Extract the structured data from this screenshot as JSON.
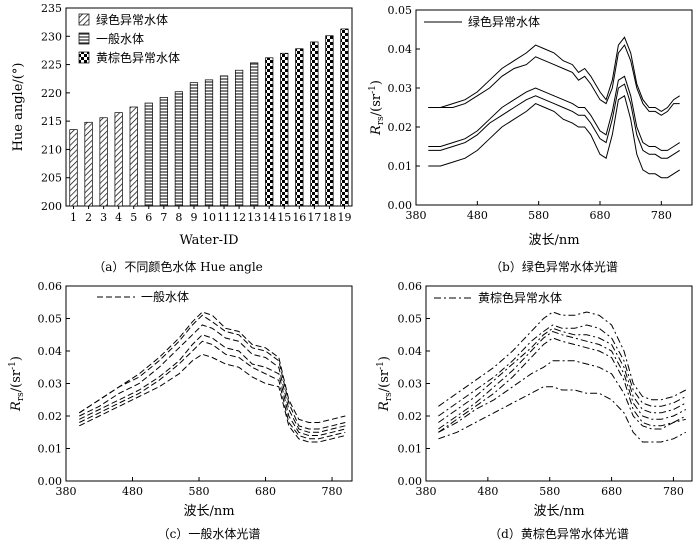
{
  "chart_data": [
    {
      "id": "a",
      "type": "bar",
      "caption": "（a）不同颜色水体 Hue angle",
      "xlabel": "Water-ID",
      "ylabel": "Hue angle/(°)",
      "ylim": [
        200,
        235
      ],
      "yticks": [
        200,
        205,
        210,
        215,
        220,
        225,
        230,
        235
      ],
      "categories": [
        "1",
        "2",
        "3",
        "4",
        "5",
        "6",
        "7",
        "8",
        "9",
        "10",
        "11",
        "12",
        "13",
        "14",
        "15",
        "16",
        "17",
        "18",
        "19"
      ],
      "values": [
        213.5,
        214.8,
        215.6,
        216.5,
        217.5,
        218.2,
        219.2,
        220.2,
        221.8,
        222.3,
        223.0,
        224.0,
        225.3,
        226.2,
        227.0,
        227.8,
        229.0,
        230.1,
        231.3
      ],
      "groups": [
        0,
        0,
        0,
        0,
        0,
        1,
        1,
        1,
        1,
        1,
        1,
        1,
        1,
        2,
        2,
        2,
        2,
        2,
        2
      ],
      "legend": [
        "绿色异常水体",
        "一般水体",
        "黄棕色异常水体"
      ],
      "legend_position": "top-left"
    },
    {
      "id": "b",
      "type": "line",
      "caption": "（b）绿色异常水体光谱",
      "xlabel": "波长/nm",
      "ylabel_main": "R",
      "ylabel_sub": "rs",
      "ylabel_unit": "/(sr",
      "ylabel_sup": "-1",
      "ylabel_close": ")",
      "xlim": [
        380,
        830
      ],
      "ylim": [
        0,
        0.05
      ],
      "xticks": [
        380,
        480,
        580,
        680,
        780
      ],
      "yticks": [
        "0.00",
        "0.01",
        "0.02",
        "0.03",
        "0.04",
        "0.05"
      ],
      "legend": [
        "绿色异常水体"
      ],
      "legend_position": "top-left",
      "line_style": "solid",
      "x": [
        400,
        420,
        440,
        460,
        480,
        500,
        520,
        540,
        560,
        575,
        590,
        605,
        620,
        635,
        645,
        655,
        665,
        680,
        690,
        700,
        710,
        720,
        730,
        740,
        750,
        760,
        770,
        780,
        790,
        800,
        810
      ],
      "series": [
        {
          "values": [
            0.025,
            0.025,
            0.026,
            0.027,
            0.029,
            0.032,
            0.035,
            0.037,
            0.039,
            0.041,
            0.04,
            0.039,
            0.037,
            0.036,
            0.034,
            0.035,
            0.033,
            0.029,
            0.027,
            0.032,
            0.041,
            0.043,
            0.039,
            0.031,
            0.027,
            0.025,
            0.025,
            0.024,
            0.025,
            0.027,
            0.028
          ]
        },
        {
          "values": [
            0.025,
            0.025,
            0.025,
            0.026,
            0.028,
            0.03,
            0.033,
            0.035,
            0.036,
            0.038,
            0.037,
            0.036,
            0.035,
            0.034,
            0.032,
            0.033,
            0.031,
            0.027,
            0.026,
            0.03,
            0.039,
            0.041,
            0.037,
            0.03,
            0.026,
            0.024,
            0.024,
            0.023,
            0.024,
            0.026,
            0.026
          ]
        },
        {
          "values": [
            0.015,
            0.015,
            0.016,
            0.017,
            0.019,
            0.022,
            0.025,
            0.027,
            0.029,
            0.03,
            0.029,
            0.028,
            0.027,
            0.026,
            0.025,
            0.025,
            0.023,
            0.019,
            0.018,
            0.024,
            0.032,
            0.033,
            0.028,
            0.02,
            0.016,
            0.015,
            0.015,
            0.014,
            0.014,
            0.015,
            0.016
          ]
        },
        {
          "values": [
            0.014,
            0.014,
            0.015,
            0.016,
            0.018,
            0.021,
            0.023,
            0.025,
            0.027,
            0.028,
            0.027,
            0.026,
            0.025,
            0.024,
            0.023,
            0.023,
            0.021,
            0.017,
            0.016,
            0.022,
            0.03,
            0.031,
            0.026,
            0.018,
            0.014,
            0.013,
            0.013,
            0.012,
            0.012,
            0.013,
            0.014
          ]
        },
        {
          "values": [
            0.01,
            0.01,
            0.011,
            0.012,
            0.014,
            0.017,
            0.02,
            0.022,
            0.024,
            0.026,
            0.025,
            0.024,
            0.022,
            0.021,
            0.02,
            0.02,
            0.018,
            0.013,
            0.012,
            0.018,
            0.027,
            0.028,
            0.022,
            0.013,
            0.009,
            0.008,
            0.008,
            0.007,
            0.007,
            0.008,
            0.009
          ]
        }
      ]
    },
    {
      "id": "c",
      "type": "line",
      "caption": "（c）一般水体光谱",
      "xlabel": "波长/nm",
      "ylabel_main": "R",
      "ylabel_sub": "rs",
      "ylabel_unit": "/(sr",
      "ylabel_sup": "-1",
      "ylabel_close": ")",
      "xlim": [
        380,
        810
      ],
      "ylim": [
        0,
        0.06
      ],
      "xticks": [
        380,
        480,
        580,
        680,
        780
      ],
      "yticks": [
        "0.00",
        "0.01",
        "0.02",
        "0.03",
        "0.04",
        "0.05",
        "0.06"
      ],
      "legend": [
        "一般水体"
      ],
      "legend_position": "top-left",
      "line_style": "dashed",
      "x": [
        400,
        430,
        460,
        490,
        520,
        550,
        570,
        585,
        600,
        620,
        640,
        660,
        680,
        700,
        715,
        730,
        745,
        760,
        780,
        800
      ],
      "series": [
        {
          "values": [
            0.021,
            0.025,
            0.029,
            0.033,
            0.038,
            0.044,
            0.049,
            0.052,
            0.051,
            0.047,
            0.046,
            0.042,
            0.041,
            0.038,
            0.025,
            0.019,
            0.018,
            0.018,
            0.019,
            0.02
          ]
        },
        {
          "values": [
            0.021,
            0.025,
            0.029,
            0.032,
            0.037,
            0.043,
            0.048,
            0.051,
            0.049,
            0.046,
            0.045,
            0.041,
            0.04,
            0.037,
            0.024,
            0.017,
            0.016,
            0.016,
            0.017,
            0.018
          ]
        },
        {
          "values": [
            0.02,
            0.023,
            0.027,
            0.03,
            0.035,
            0.041,
            0.045,
            0.048,
            0.047,
            0.044,
            0.043,
            0.039,
            0.038,
            0.035,
            0.022,
            0.016,
            0.015,
            0.015,
            0.016,
            0.017
          ]
        },
        {
          "values": [
            0.019,
            0.022,
            0.025,
            0.028,
            0.032,
            0.037,
            0.042,
            0.045,
            0.044,
            0.041,
            0.04,
            0.036,
            0.035,
            0.033,
            0.02,
            0.015,
            0.014,
            0.014,
            0.015,
            0.016
          ]
        },
        {
          "values": [
            0.018,
            0.021,
            0.024,
            0.027,
            0.031,
            0.036,
            0.04,
            0.043,
            0.042,
            0.039,
            0.038,
            0.035,
            0.033,
            0.031,
            0.018,
            0.014,
            0.013,
            0.013,
            0.014,
            0.015
          ]
        },
        {
          "values": [
            0.017,
            0.02,
            0.023,
            0.026,
            0.029,
            0.033,
            0.037,
            0.039,
            0.038,
            0.036,
            0.035,
            0.032,
            0.03,
            0.029,
            0.017,
            0.013,
            0.012,
            0.012,
            0.013,
            0.014
          ]
        }
      ]
    },
    {
      "id": "d",
      "type": "line",
      "caption": "（d）黄棕色异常水体光谱",
      "xlabel": "波长/nm",
      "ylabel_main": "R",
      "ylabel_sub": "rs",
      "ylabel_unit": "/(sr",
      "ylabel_sup": "-1",
      "ylabel_close": ")",
      "xlim": [
        380,
        810
      ],
      "ylim": [
        0,
        0.06
      ],
      "xticks": [
        380,
        480,
        580,
        680,
        780
      ],
      "yticks": [
        "0.00",
        "0.01",
        "0.02",
        "0.03",
        "0.04",
        "0.05",
        "0.06"
      ],
      "legend": [
        "黄棕色异常水体"
      ],
      "legend_position": "top-left",
      "line_style": "dashdot",
      "x": [
        400,
        430,
        460,
        490,
        520,
        550,
        570,
        585,
        600,
        620,
        640,
        660,
        680,
        700,
        715,
        730,
        745,
        760,
        780,
        800
      ],
      "series": [
        {
          "values": [
            0.023,
            0.027,
            0.031,
            0.035,
            0.04,
            0.046,
            0.05,
            0.052,
            0.051,
            0.051,
            0.052,
            0.051,
            0.048,
            0.04,
            0.03,
            0.026,
            0.025,
            0.025,
            0.026,
            0.028
          ]
        },
        {
          "values": [
            0.02,
            0.024,
            0.028,
            0.032,
            0.037,
            0.043,
            0.046,
            0.048,
            0.047,
            0.047,
            0.048,
            0.047,
            0.044,
            0.037,
            0.028,
            0.024,
            0.023,
            0.023,
            0.024,
            0.026
          ]
        },
        {
          "values": [
            0.018,
            0.022,
            0.026,
            0.031,
            0.036,
            0.041,
            0.045,
            0.047,
            0.046,
            0.045,
            0.045,
            0.044,
            0.042,
            0.035,
            0.026,
            0.022,
            0.021,
            0.021,
            0.022,
            0.024
          ]
        },
        {
          "values": [
            0.016,
            0.02,
            0.024,
            0.029,
            0.034,
            0.04,
            0.044,
            0.046,
            0.045,
            0.044,
            0.043,
            0.042,
            0.04,
            0.033,
            0.024,
            0.02,
            0.019,
            0.019,
            0.02,
            0.022
          ]
        },
        {
          "values": [
            0.015,
            0.019,
            0.023,
            0.027,
            0.032,
            0.038,
            0.042,
            0.044,
            0.043,
            0.042,
            0.041,
            0.04,
            0.038,
            0.031,
            0.022,
            0.018,
            0.017,
            0.017,
            0.018,
            0.02
          ]
        },
        {
          "values": [
            0.015,
            0.018,
            0.022,
            0.025,
            0.029,
            0.033,
            0.035,
            0.037,
            0.037,
            0.037,
            0.036,
            0.035,
            0.033,
            0.027,
            0.02,
            0.017,
            0.016,
            0.016,
            0.018,
            0.019
          ]
        },
        {
          "values": [
            0.013,
            0.015,
            0.018,
            0.021,
            0.024,
            0.027,
            0.029,
            0.029,
            0.028,
            0.028,
            0.027,
            0.027,
            0.025,
            0.021,
            0.015,
            0.012,
            0.012,
            0.012,
            0.013,
            0.015
          ]
        }
      ]
    }
  ]
}
